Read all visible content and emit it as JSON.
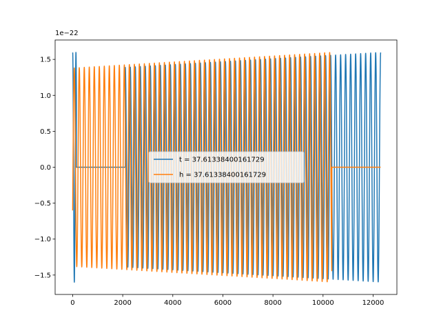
{
  "chart_data": {
    "type": "line",
    "title": "",
    "xlabel": "",
    "ylabel": "",
    "offset_label": "1e−22",
    "xlim": [
      -700,
      12950
    ],
    "ylim": [
      -1.77,
      1.77
    ],
    "xticks": [
      0,
      2000,
      4000,
      6000,
      8000,
      10000,
      12000
    ],
    "xtick_labels": [
      "0",
      "2000",
      "4000",
      "6000",
      "8000",
      "10000",
      "12000"
    ],
    "yticks": [
      -1.5,
      -1.0,
      -0.5,
      0.0,
      0.5,
      1.0,
      1.5
    ],
    "ytick_labels": [
      "−1.5",
      "−1.0",
      "−0.5",
      "0.0",
      "0.5",
      "1.0",
      "1.5"
    ],
    "grid": false,
    "legend_position": "center",
    "series": [
      {
        "name": "t = 37.61338400161729",
        "color": "#1f77b4",
        "note_segments": [
          {
            "kind": "oscillation",
            "x_start": 0,
            "x_end": 150,
            "amp_start": 1.6,
            "amp_end": 1.6,
            "period": 130
          },
          {
            "kind": "flat",
            "x_start": 150,
            "x_end": 2100,
            "value": 0.0
          },
          {
            "kind": "oscillation",
            "x_start": 2100,
            "x_end": 12300,
            "amp_start": 1.39,
            "amp_end": 1.6,
            "period": 200
          }
        ]
      },
      {
        "name": "h = 37.61338400161729",
        "color": "#ff7f0e",
        "note_segments": [
          {
            "kind": "oscillation",
            "x_start": 0,
            "x_end": 10350,
            "amp_start": 1.38,
            "amp_end": 1.6,
            "period": 200
          },
          {
            "kind": "flat",
            "x_start": 10350,
            "x_end": 12300,
            "value": 0.0
          }
        ]
      }
    ]
  }
}
